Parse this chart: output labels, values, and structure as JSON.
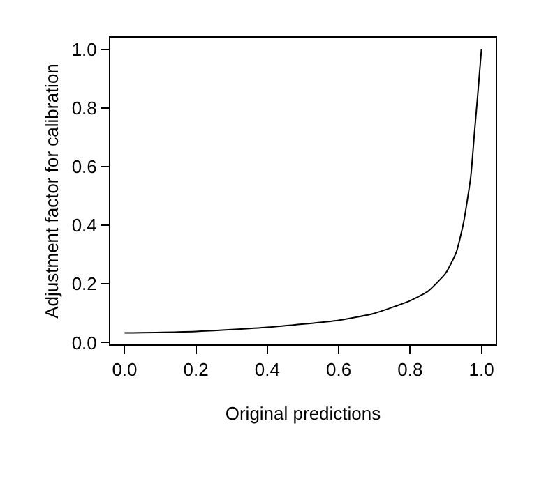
{
  "chart_data": {
    "type": "line",
    "xlabel": "Original predictions",
    "ylabel": "Adjustment factor for calibration",
    "x": [
      0,
      0.2,
      0.4,
      0.6,
      0.7,
      0.8,
      0.85,
      0.9,
      0.93,
      0.95,
      0.97,
      0.98,
      0.99,
      1.0
    ],
    "series": [
      {
        "color": "#000000",
        "values": [
          0.033,
          0.038,
          0.052,
          0.076,
          0.1,
          0.143,
          0.175,
          0.237,
          0.31,
          0.41,
          0.565,
          0.71,
          0.85,
          1.0
        ]
      }
    ],
    "xlim": [
      -0.04,
      1.04
    ],
    "ylim": [
      -0.006,
      1.04
    ],
    "xticks": [
      {
        "value": 0,
        "label": "0.0"
      },
      0.2,
      0.4,
      0.6,
      0.8,
      {
        "value": 1,
        "label": "1.0"
      }
    ],
    "yticks": [
      {
        "value": 0,
        "label": "0.0"
      },
      0.2,
      0.4,
      0.6,
      0.8,
      {
        "value": 1,
        "label": "1.0"
      }
    ],
    "marker": "none",
    "line_style": "solid"
  }
}
